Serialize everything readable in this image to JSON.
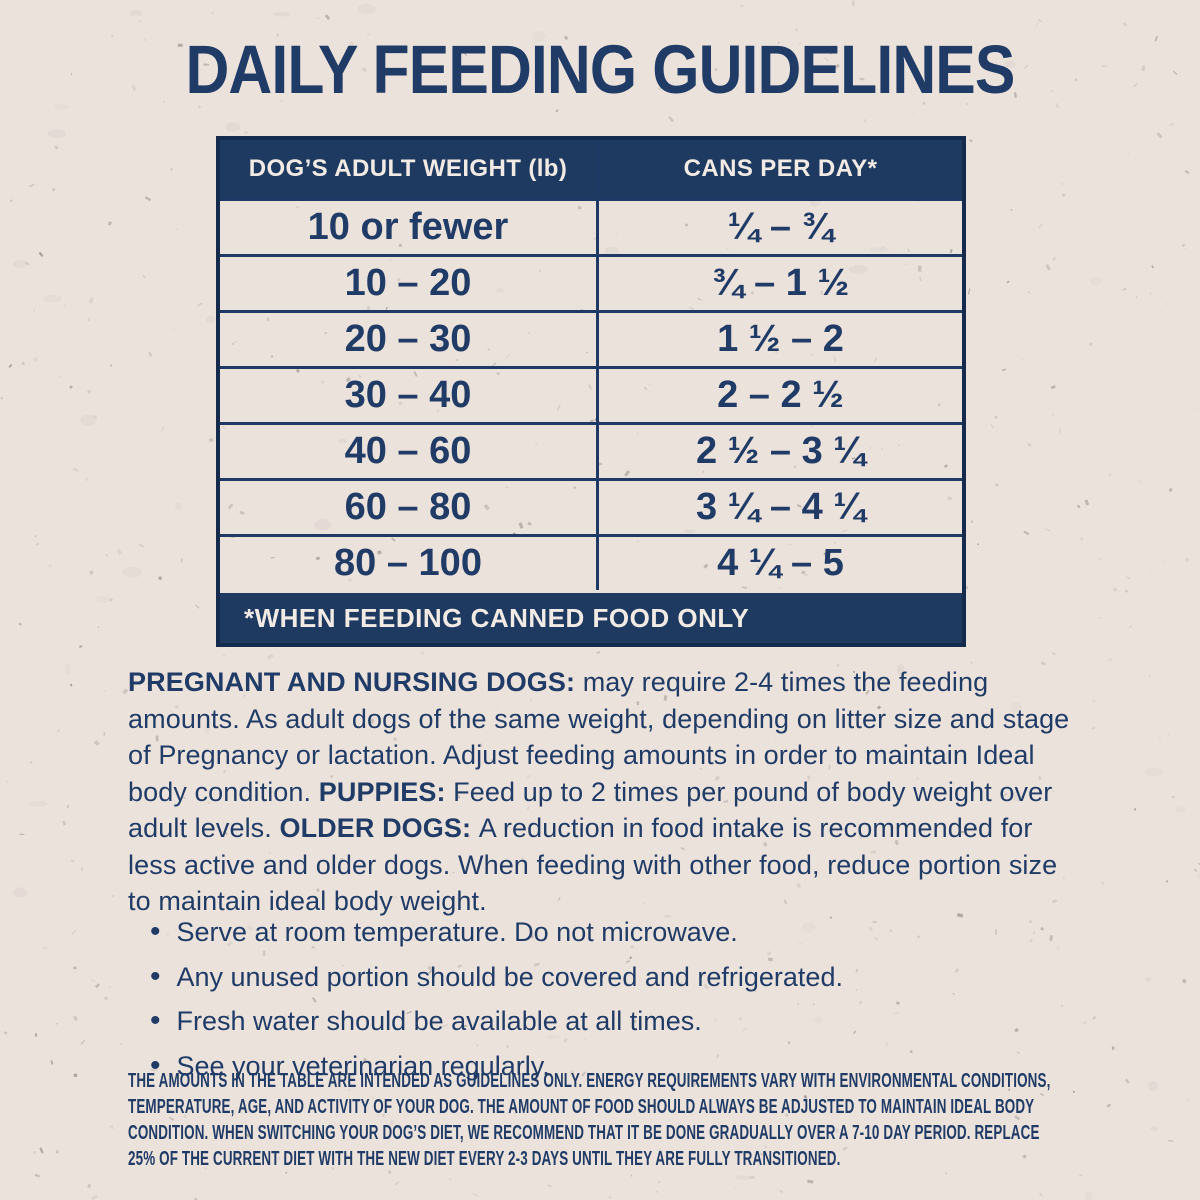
{
  "title": "DAILY FEEDING GUIDELINES",
  "colors": {
    "navy": "#1e3a61",
    "navy_text": "#1f3b66",
    "background": "#ece2dc",
    "header_text": "#f2ebe5"
  },
  "table": {
    "headers": [
      "DOG’S ADULT WEIGHT (lb)",
      "CANS PER DAY*"
    ],
    "rows": [
      {
        "weight": "10 or fewer",
        "cans": "¼ – ¾"
      },
      {
        "weight": "10 – 20",
        "cans": "¾ – 1 ½"
      },
      {
        "weight": "20 – 30",
        "cans": "1 ½ – 2"
      },
      {
        "weight": "30 – 40",
        "cans": "2 – 2 ½"
      },
      {
        "weight": "40 – 60",
        "cans": "2 ½ – 3 ¼"
      },
      {
        "weight": "60 – 80",
        "cans": "3 ¼ – 4 ¼"
      },
      {
        "weight": "80 – 100",
        "cans": "4 ¼ – 5"
      }
    ],
    "footnote": "*WHEN FEEDING CANNED FOOD ONLY"
  },
  "paragraph": [
    {
      "text": "PREGNANT AND NURSING DOGS: ",
      "bold": true
    },
    {
      "text": "may require 2-4 times the feeding amounts. As adult dogs of the same weight, depending on litter size and stage of Pregnancy or lactation. Adjust feeding amounts in order to maintain Ideal body condition. ",
      "bold": false
    },
    {
      "text": "PUPPIES: ",
      "bold": true
    },
    {
      "text": "Feed up to 2 times per pound of body weight over adult levels. ",
      "bold": false
    },
    {
      "text": "OLDER DOGS: ",
      "bold": true
    },
    {
      "text": "A reduction in food intake is recommended for less active and older dogs. When feeding with other food, reduce portion size to maintain ideal body weight.",
      "bold": false
    }
  ],
  "bullets": [
    "Serve at room temperature. Do not microwave.",
    "Any unused portion should be covered and refrigerated.",
    "Fresh water should be available at all times.",
    "See your veterinarian regularly."
  ],
  "fine_print": "THE AMOUNTS IN THE TABLE ARE INTENDED AS GUIDELINES ONLY. ENERGY REQUIREMENTS VARY WITH ENVIRONMENTAL CONDITIONS, TEMPERATURE, AGE, AND ACTIVITY OF YOUR DOG. THE AMOUNT OF FOOD SHOULD ALWAYS BE ADJUSTED TO MAINTAIN IDEAL BODY CONDITION. WHEN SWITCHING YOUR DOG’S DIET, WE RECOMMEND THAT IT BE DONE GRADUALLY OVER A 7-10 DAY PERIOD. REPLACE 25% OF THE CURRENT DIET WITH THE NEW DIET EVERY 2-3 DAYS UNTIL THEY ARE FULLY TRANSITIONED."
}
